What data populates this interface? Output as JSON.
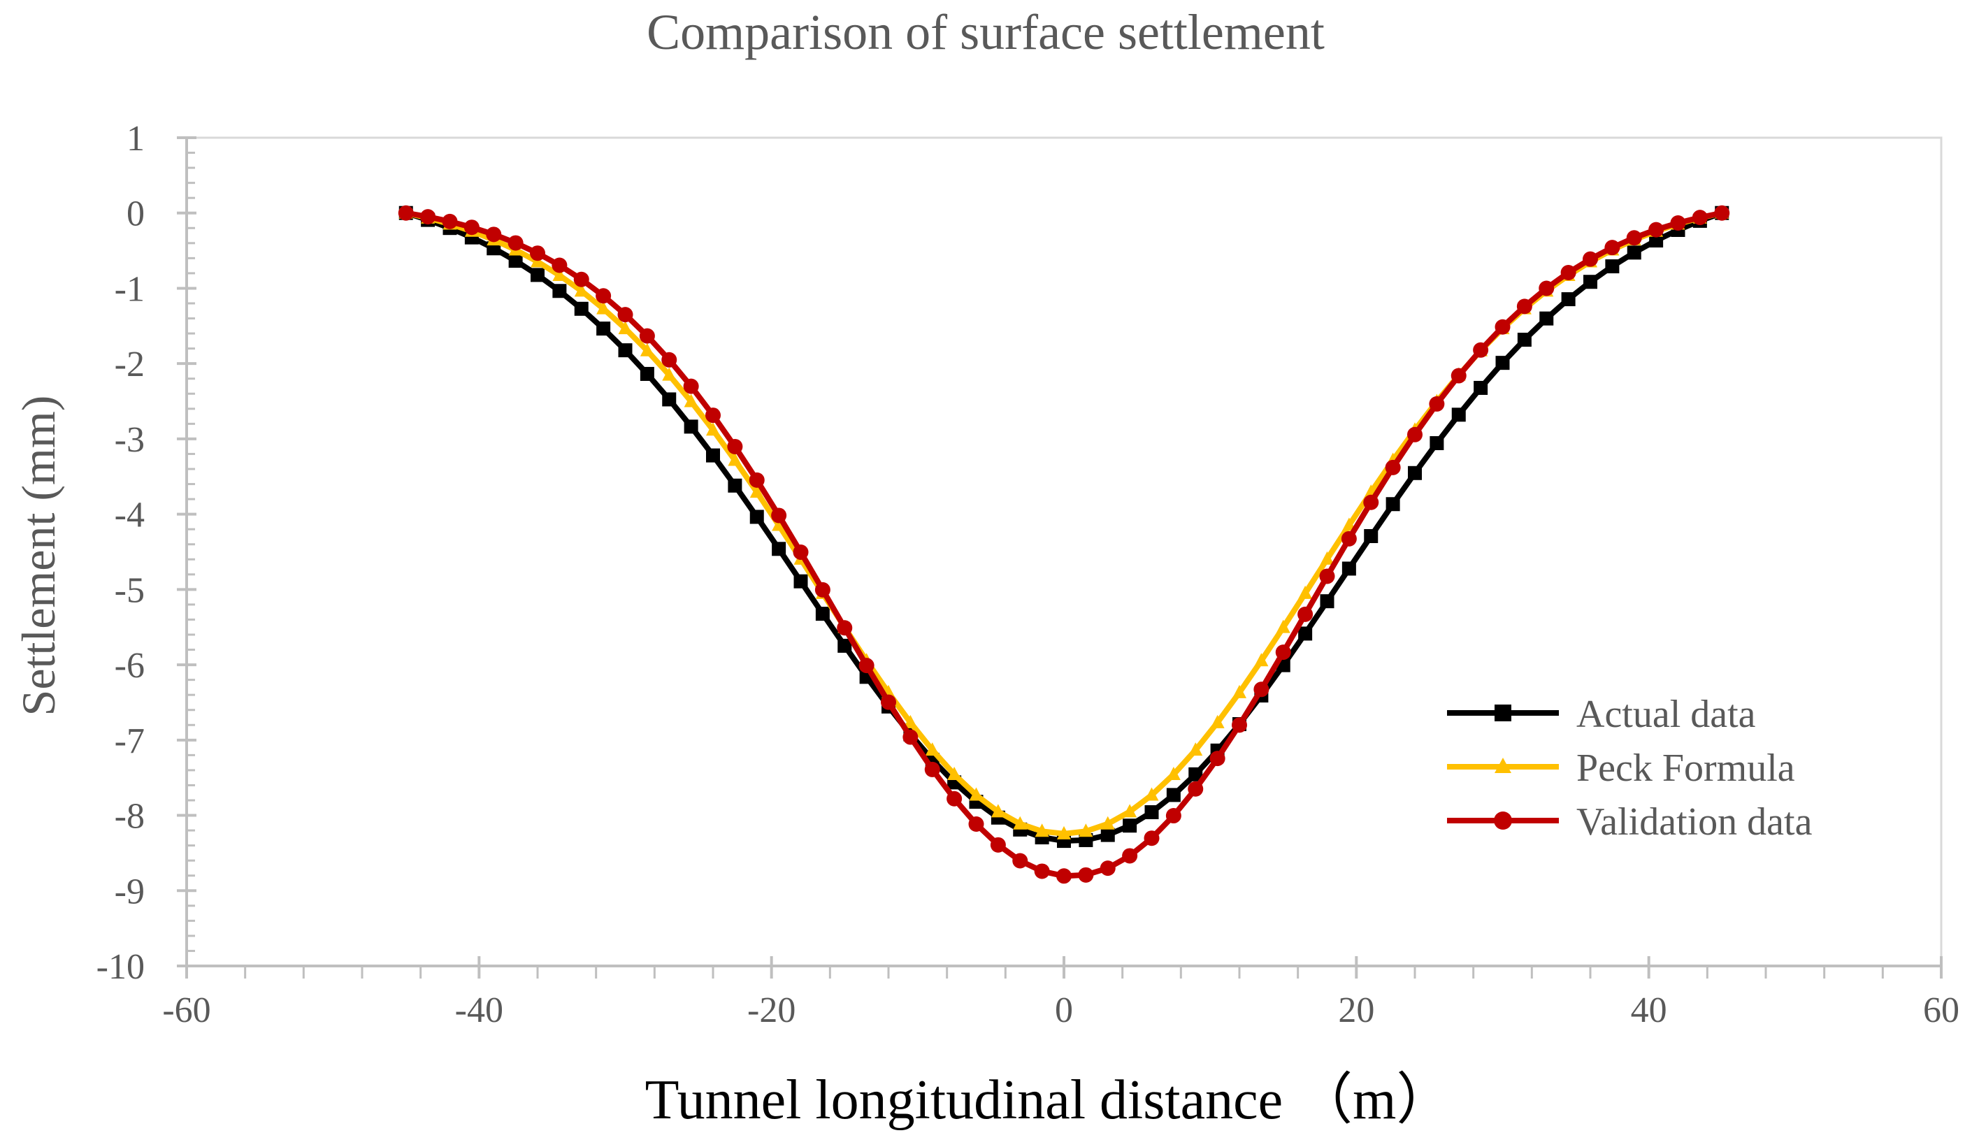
{
  "chart_data": {
    "type": "line",
    "title": "Comparison of surface settlement",
    "xlabel": "Tunnel longitudinal distance （m）",
    "ylabel": "Settlement (mm)",
    "xlim": [
      -60,
      60
    ],
    "ylim": [
      -10,
      1
    ],
    "xticks": [
      -60,
      -40,
      -20,
      0,
      20,
      40,
      60
    ],
    "yticks": [
      1,
      0,
      -1,
      -2,
      -3,
      -4,
      -5,
      -6,
      -7,
      -8,
      -9,
      -10
    ],
    "x_minor_step": 4,
    "y_minor_step": 0.2,
    "grid": false,
    "legend_position": "center-right",
    "sample": {
      "x_start": -45,
      "x_end": 45,
      "x_step": 1.5
    },
    "series": [
      {
        "name": "Actual data",
        "marker": "square",
        "color": "#000000",
        "model": {
          "peak": -8.8,
          "center": 0.5,
          "trough_width": 18.5,
          "offset_at_ends": 0
        }
      },
      {
        "name": "Peck Formula",
        "marker": "triangle",
        "color": "#FFC000",
        "model": {
          "peak": -8.5,
          "center": 0,
          "trough_width": 17.0,
          "offset_at_ends": 0
        }
      },
      {
        "name": "Validation data",
        "marker": "circle",
        "color": "#C00000",
        "model": {
          "peak": -9.0,
          "center": 0.5,
          "trough_width": 16.2,
          "offset_at_ends": 0
        }
      }
    ]
  }
}
